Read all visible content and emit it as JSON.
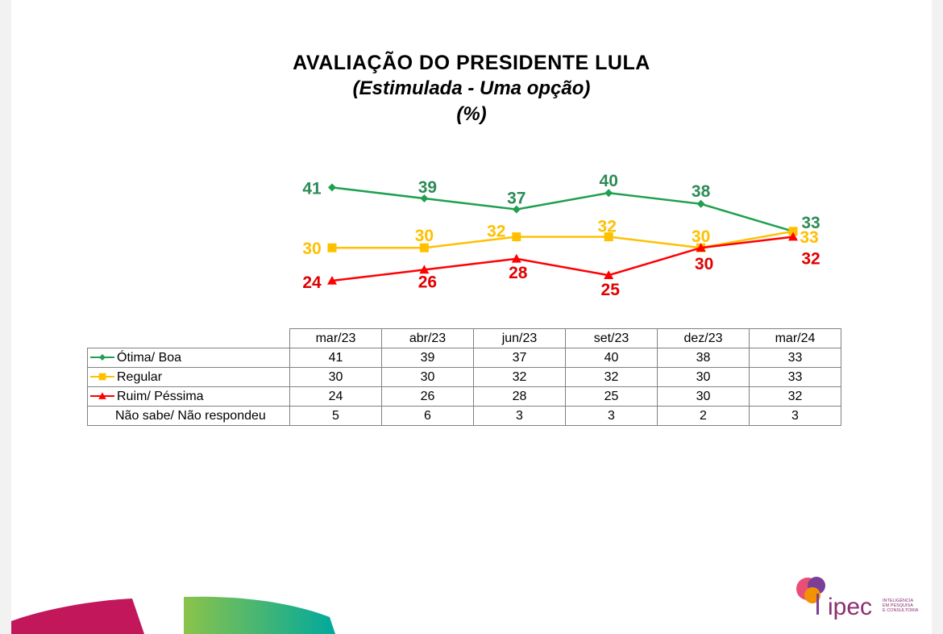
{
  "title": {
    "line1": "AVALIAÇÃO DO PRESIDENTE LULA",
    "line2": "(Estimulada - Uma opção)",
    "line3": "(%)"
  },
  "chart_data": {
    "type": "line",
    "categories": [
      "mar/23",
      "abr/23",
      "jun/23",
      "set/23",
      "dez/23",
      "mar/24"
    ],
    "series": [
      {
        "name": "Ótima/ Boa",
        "values": [
          41,
          39,
          37,
          40,
          38,
          33
        ],
        "color": "#1ea04f",
        "label_color": "#2e8b57",
        "marker": "diamond"
      },
      {
        "name": "Regular",
        "values": [
          30,
          30,
          32,
          32,
          30,
          33
        ],
        "color": "#ffc000",
        "label_color": "#ffc000",
        "marker": "square"
      },
      {
        "name": "Ruim/ Péssima",
        "values": [
          24,
          26,
          28,
          25,
          30,
          32
        ],
        "color": "#ff0000",
        "label_color": "#e00000",
        "marker": "triangle"
      }
    ],
    "extra_rows": [
      {
        "name": "Não sabe/ Não respondeu",
        "values": [
          5,
          6,
          3,
          3,
          2,
          3
        ]
      }
    ],
    "legend": "data table below chart",
    "grid": false
  },
  "logo": {
    "name": "ipec",
    "tagline": [
      "INTELIGÊNCIA",
      "EM PESQUISA",
      "E CONSULTORIA"
    ]
  }
}
